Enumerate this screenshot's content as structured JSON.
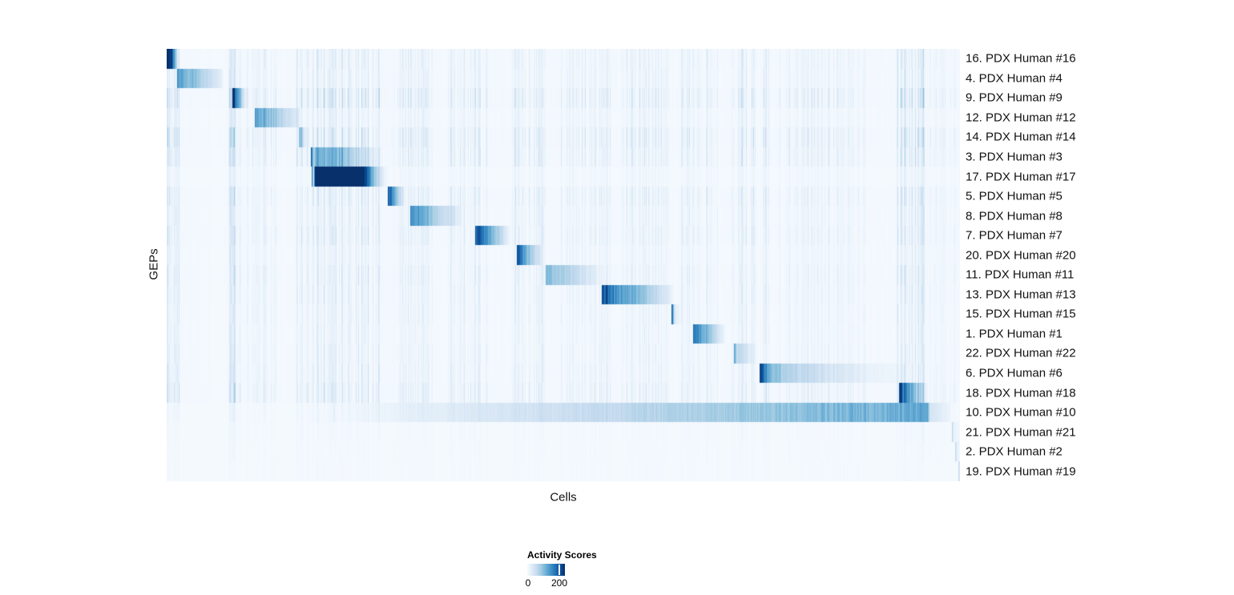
{
  "chart_data": {
    "type": "heatmap",
    "title": "",
    "xlabel": "Cells",
    "ylabel": "GEPs",
    "grid": false,
    "colormap_name": "Blues",
    "colormap_stops": [
      "#f7fbff",
      "#deebf7",
      "#c6dbef",
      "#9ecae1",
      "#6baed6",
      "#4292c6",
      "#2171b5",
      "#08519c",
      "#08306b"
    ],
    "colorbar": {
      "title": "Activity Scores",
      "tick_labels": [
        "0",
        "200"
      ],
      "tick_positions": [
        0.021,
        0.851
      ],
      "value_range": [
        0,
        235
      ],
      "position": "bottom-center"
    },
    "value_scale_max": 235,
    "legend_position": "bottom",
    "rows": [
      {
        "label": "16. PDX Human #16",
        "noise_level": 0.55,
        "activity_profile": [
          [
            0,
            228
          ],
          [
            0.006,
            200
          ],
          [
            0.01,
            94
          ],
          [
            0.014,
            14
          ],
          [
            0.017,
            0
          ]
        ]
      },
      {
        "label": "4. PDX Human #4",
        "noise_level": 0.5,
        "activity_profile": [
          [
            0.0131,
            129
          ],
          [
            0.03,
            99
          ],
          [
            0.0677,
            24
          ],
          [
            0.072,
            0
          ]
        ]
      },
      {
        "label": "9. PDX Human #9",
        "noise_level": 0.9,
        "activity_profile": [
          [
            0.0828,
            207
          ],
          [
            0.09,
            118
          ],
          [
            0.099,
            19
          ],
          [
            0.103,
            0
          ]
        ]
      },
      {
        "label": "12. PDX Human #12",
        "noise_level": 0.45,
        "activity_profile": [
          [
            0.1111,
            122
          ],
          [
            0.13,
            89
          ],
          [
            0.1657,
            24
          ],
          [
            0.17,
            0
          ]
        ]
      },
      {
        "label": "14. PDX Human #14",
        "noise_level": 0.85,
        "activity_profile": [
          [
            0.1663,
            106
          ],
          [
            0.17,
            71
          ],
          [
            0.1737,
            19
          ],
          [
            0.177,
            0
          ]
        ]
      },
      {
        "label": "3. PDX Human #3",
        "noise_level": 0.7,
        "activity_profile": [
          [
            0.1818,
            223
          ],
          [
            0.1838,
            100
          ],
          [
            0.185,
            45
          ],
          [
            0.187,
            95
          ],
          [
            0.22,
            85
          ],
          [
            0.2505,
            28
          ],
          [
            0.268,
            7
          ],
          [
            0.272,
            0
          ]
        ]
      },
      {
        "label": "17. PDX Human #17",
        "noise_level": 0.3,
        "activity_profile": [
          [
            0.1825,
            212
          ],
          [
            0.1843,
            71
          ],
          [
            0.1853,
            16
          ],
          [
            0.1869,
            235
          ],
          [
            0.2475,
            235
          ],
          [
            0.256,
            141
          ],
          [
            0.265,
            59
          ],
          [
            0.2755,
            7
          ],
          [
            0.28,
            0
          ]
        ]
      },
      {
        "label": "5. PDX Human #5",
        "noise_level": 0.65,
        "activity_profile": [
          [
            0.2788,
            207
          ],
          [
            0.2868,
            118
          ],
          [
            0.297,
            16
          ],
          [
            0.301,
            0
          ]
        ]
      },
      {
        "label": "8. PDX Human #8",
        "noise_level": 0.5,
        "activity_profile": [
          [
            0.3074,
            136
          ],
          [
            0.325,
            99
          ],
          [
            0.3697,
            14
          ],
          [
            0.374,
            0
          ]
        ]
      },
      {
        "label": "7. PDX Human #7",
        "noise_level": 0.6,
        "activity_profile": [
          [
            0.3886,
            188
          ],
          [
            0.405,
            129
          ],
          [
            0.4296,
            19
          ],
          [
            0.434,
            0
          ]
        ]
      },
      {
        "label": "20. PDX Human #20",
        "noise_level": 0.4,
        "activity_profile": [
          [
            0.4414,
            207
          ],
          [
            0.4515,
            118
          ],
          [
            0.4717,
            16
          ],
          [
            0.476,
            0
          ]
        ]
      },
      {
        "label": "11. PDX Human #11",
        "noise_level": 0.55,
        "activity_profile": [
          [
            0.4778,
            100
          ],
          [
            0.5,
            70
          ],
          [
            0.5424,
            12
          ],
          [
            0.547,
            0
          ]
        ]
      },
      {
        "label": "13. PDX Human #13",
        "noise_level": 0.5,
        "activity_profile": [
          [
            0.5485,
            205
          ],
          [
            0.57,
            135
          ],
          [
            0.6,
            80
          ],
          [
            0.6354,
            14
          ],
          [
            0.64,
            0
          ]
        ]
      },
      {
        "label": "15. PDX Human #15",
        "noise_level": 0.45,
        "activity_profile": [
          [
            0.6364,
            200
          ],
          [
            0.6404,
            24
          ],
          [
            0.647,
            5
          ],
          [
            0.652,
            0
          ]
        ]
      },
      {
        "label": "1. PDX Human #1",
        "noise_level": 0.4,
        "activity_profile": [
          [
            0.6636,
            176
          ],
          [
            0.675,
            118
          ],
          [
            0.701,
            16
          ],
          [
            0.705,
            0
          ]
        ]
      },
      {
        "label": "22. PDX Human #22",
        "noise_level": 0.45,
        "activity_profile": [
          [
            0.7152,
            165
          ],
          [
            0.7185,
            52
          ],
          [
            0.7394,
            12
          ],
          [
            0.744,
            0
          ]
        ]
      },
      {
        "label": "6. PDX Human #6",
        "noise_level": 0.5,
        "activity_profile": [
          [
            0.7475,
            223
          ],
          [
            0.7576,
            112
          ],
          [
            0.78,
            66
          ],
          [
            0.83,
            33
          ],
          [
            0.88,
            14
          ],
          [
            0.93,
            5
          ],
          [
            0.94,
            0
          ]
        ]
      },
      {
        "label": "18. PDX Human #18",
        "noise_level": 0.65,
        "activity_profile": [
          [
            0.9229,
            212
          ],
          [
            0.933,
            129
          ],
          [
            0.9566,
            14
          ],
          [
            0.96,
            0
          ]
        ]
      },
      {
        "label": "10. PDX Human #10",
        "noise_level": 0.18,
        "activity_profile": [
          [
            0.2101,
            0
          ],
          [
            0.2111,
            33
          ],
          [
            0.2121,
            0
          ],
          [
            0.9596,
            118
          ],
          [
            0.962,
            35
          ],
          [
            0.9869,
            9
          ],
          [
            0.99,
            0
          ]
        ]
      },
      {
        "label": "21. PDX Human #21",
        "noise_level": 0.1,
        "activity_profile": [
          [
            0.9899,
            71
          ],
          [
            0.992,
            12
          ],
          [
            1,
            5
          ]
        ]
      },
      {
        "label": "2. PDX Human #2",
        "noise_level": 0.08,
        "activity_profile": [
          [
            0.994,
            66
          ],
          [
            0.997,
            12
          ],
          [
            1,
            5
          ]
        ]
      },
      {
        "label": "19. PDX Human #19",
        "noise_level": 0.06,
        "activity_profile": [
          [
            0.998,
            59
          ],
          [
            1,
            24
          ]
        ]
      }
    ],
    "streak_bands": [
      {
        "from": 0.0,
        "to": 0.016,
        "strength": 0.45
      },
      {
        "from": 0.078,
        "to": 0.104,
        "strength": 0.55
      },
      {
        "from": 0.108,
        "to": 0.138,
        "strength": 0.22
      },
      {
        "from": 0.164,
        "to": 0.272,
        "strength": 0.45
      },
      {
        "from": 0.285,
        "to": 0.335,
        "strength": 0.28
      },
      {
        "from": 0.355,
        "to": 0.405,
        "strength": 0.3
      },
      {
        "from": 0.435,
        "to": 0.478,
        "strength": 0.38
      },
      {
        "from": 0.497,
        "to": 0.56,
        "strength": 0.22
      },
      {
        "from": 0.572,
        "to": 0.633,
        "strength": 0.28
      },
      {
        "from": 0.648,
        "to": 0.695,
        "strength": 0.24
      },
      {
        "from": 0.712,
        "to": 0.762,
        "strength": 0.32
      },
      {
        "from": 0.772,
        "to": 0.882,
        "strength": 0.18
      },
      {
        "from": 0.918,
        "to": 0.957,
        "strength": 0.55
      },
      {
        "from": 0.958,
        "to": 1.0,
        "strength": 0.12
      }
    ]
  }
}
